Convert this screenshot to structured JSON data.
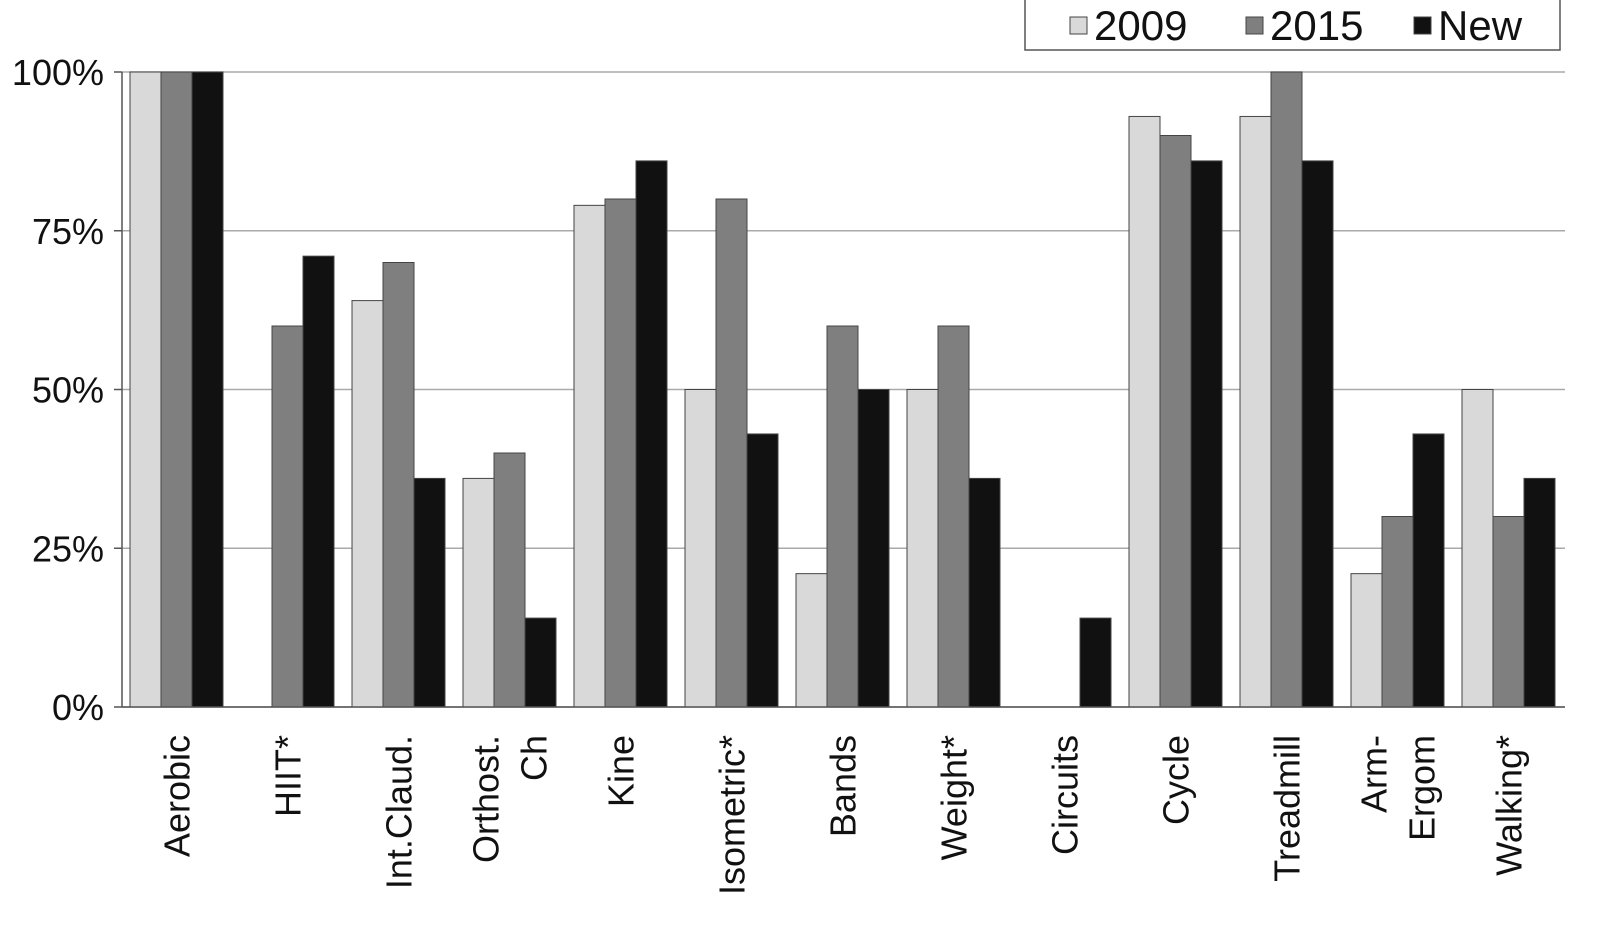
{
  "chart_data": {
    "type": "bar",
    "categories": [
      "Aerobic",
      "HIIT*",
      "Int.Claud.",
      [
        "Orthost.",
        "Ch"
      ],
      "Kine",
      "Isometric*",
      "Bands",
      "Weight*",
      "Circuits",
      "Cycle",
      "Treadmill",
      [
        "Arm-",
        "Ergom"
      ],
      "Walking*"
    ],
    "series": [
      {
        "name": "2009",
        "color": "#d9d9d9",
        "values": [
          100,
          0,
          64,
          36,
          79,
          50,
          21,
          50,
          0,
          93,
          93,
          21,
          50
        ]
      },
      {
        "name": "2015",
        "color": "#7f7f7f",
        "values": [
          100,
          60,
          70,
          40,
          80,
          80,
          60,
          60,
          0,
          90,
          100,
          30,
          30
        ]
      },
      {
        "name": "New",
        "color": "#111111",
        "values": [
          100,
          71,
          36,
          14,
          86,
          43,
          50,
          36,
          14,
          86,
          86,
          43,
          36
        ]
      }
    ],
    "ylim": [
      0,
      100
    ],
    "yticks": [
      {
        "value": 0,
        "label": "0%"
      },
      {
        "value": 25,
        "label": "25%"
      },
      {
        "value": 50,
        "label": "50%"
      },
      {
        "value": 75,
        "label": "75%"
      },
      {
        "value": 100,
        "label": "100%"
      }
    ],
    "grid": true,
    "legend": "top-right"
  }
}
